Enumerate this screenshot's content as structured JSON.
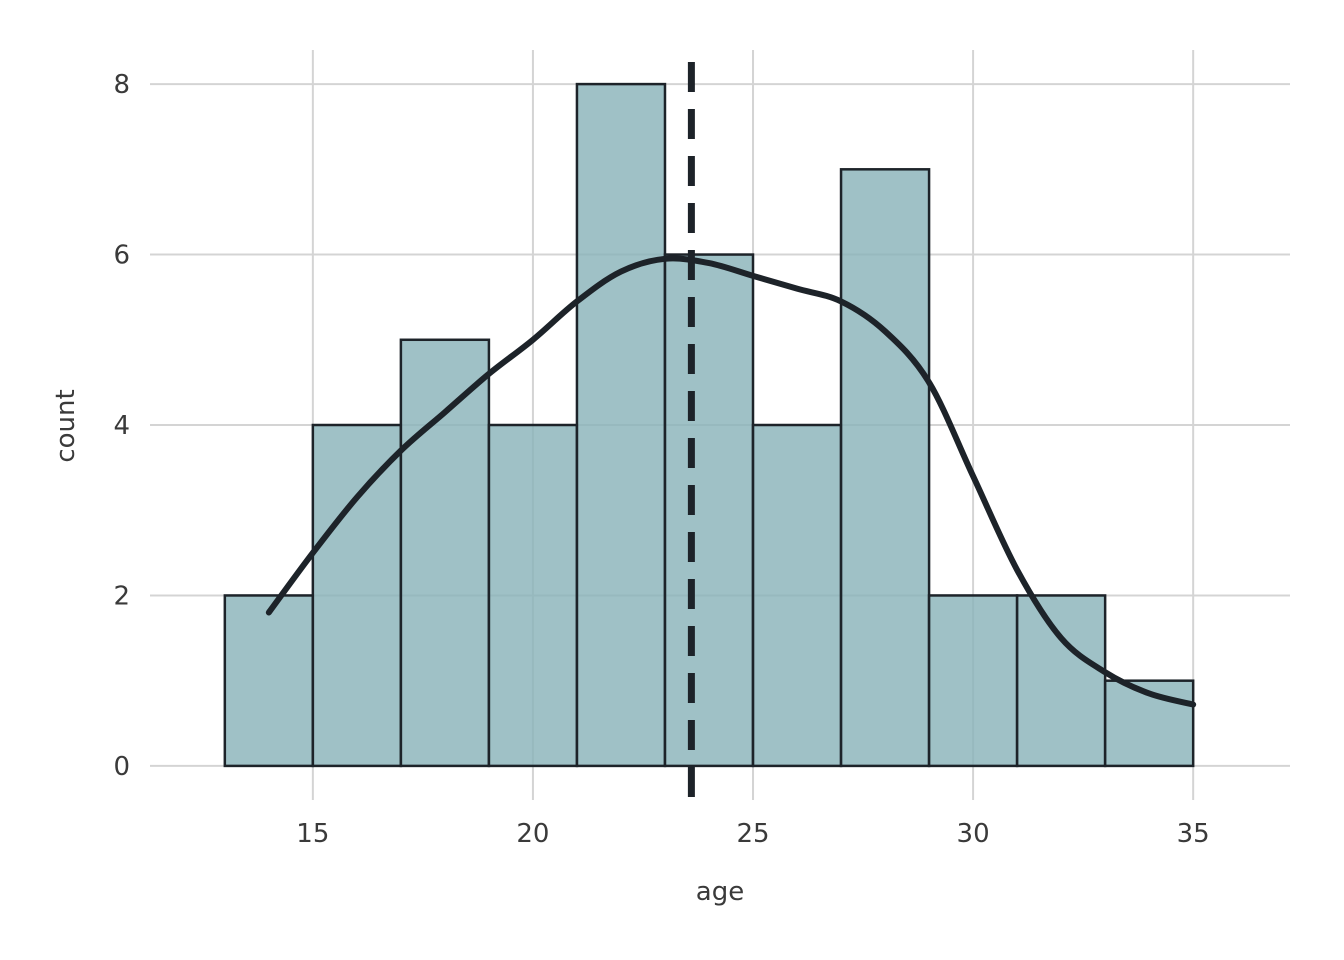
{
  "chart_data": {
    "type": "bar",
    "subtype": "histogram",
    "title": "",
    "xlabel": "age",
    "ylabel": "count",
    "bins": [
      {
        "start": 13,
        "end": 15,
        "count": 2
      },
      {
        "start": 15,
        "end": 17,
        "count": 4
      },
      {
        "start": 17,
        "end": 19,
        "count": 5
      },
      {
        "start": 19,
        "end": 21,
        "count": 4
      },
      {
        "start": 21,
        "end": 23,
        "count": 8
      },
      {
        "start": 23,
        "end": 25,
        "count": 6
      },
      {
        "start": 25,
        "end": 27,
        "count": 4
      },
      {
        "start": 27,
        "end": 29,
        "count": 7
      },
      {
        "start": 29,
        "end": 31,
        "count": 2
      },
      {
        "start": 31,
        "end": 33,
        "count": 2
      },
      {
        "start": 33,
        "end": 35,
        "count": 1
      }
    ],
    "density_curve": {
      "x": [
        14,
        15,
        16,
        17,
        18,
        19,
        20,
        21,
        22,
        23,
        24,
        25,
        26,
        27,
        28,
        29,
        30,
        31,
        32,
        33,
        34,
        35
      ],
      "y": [
        1.8,
        2.5,
        3.15,
        3.7,
        4.15,
        4.6,
        5.0,
        5.45,
        5.8,
        5.95,
        5.9,
        5.75,
        5.6,
        5.45,
        5.1,
        4.5,
        3.4,
        2.3,
        1.5,
        1.1,
        0.85,
        0.72
      ]
    },
    "mean_line": 23.6,
    "xlim": [
      11.3,
      37.2
    ],
    "ylim": [
      -0.4,
      8.4
    ],
    "xticks": [
      15,
      20,
      25,
      30,
      35
    ],
    "yticks": [
      0,
      2,
      4,
      6,
      8
    ],
    "grid": true,
    "colors": {
      "bar_fill": "#8ab3ba",
      "bar_edge": "#1d2329",
      "curve": "#1d2329",
      "grid": "#d4d4d4"
    }
  }
}
